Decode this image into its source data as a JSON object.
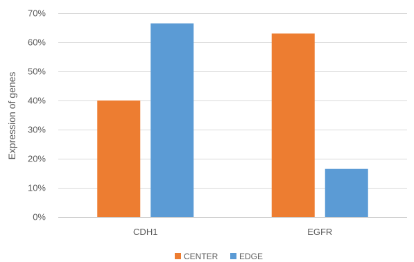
{
  "chart_data": {
    "type": "bar",
    "title": "",
    "xlabel": "",
    "ylabel": "Expression of genes",
    "categories": [
      "CDH1",
      "EGFR"
    ],
    "series": [
      {
        "name": "CENTER",
        "values": [
          0.4,
          0.63
        ],
        "color": "#ED7D31"
      },
      {
        "name": "EDGE",
        "values": [
          0.665,
          0.165
        ],
        "color": "#5B9BD5"
      }
    ],
    "ylim": [
      0,
      0.7
    ],
    "yticks": [
      0,
      0.1,
      0.2,
      0.3,
      0.4,
      0.5,
      0.6,
      0.7
    ],
    "ytick_labels": [
      "0%",
      "10%",
      "20%",
      "30%",
      "40%",
      "50%",
      "60%",
      "70%"
    ],
    "grid": true,
    "legend_position": "bottom"
  }
}
